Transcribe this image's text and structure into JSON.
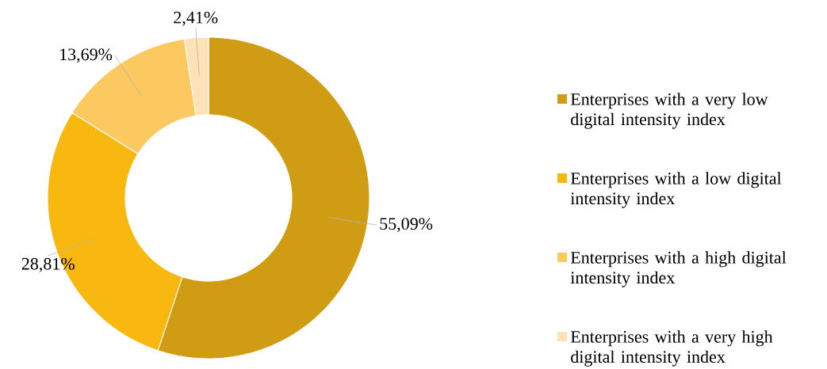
{
  "chart_data": {
    "type": "donut",
    "categories": [
      "Enterprises with a very low digital intensity index",
      "Enterprises with a low digital intensity index",
      "Enterprises with a high digital intensity index",
      "Enterprises with a very high digital intensity index"
    ],
    "values": [
      55.09,
      28.81,
      13.69,
      2.41
    ],
    "colors": [
      "#d09c14",
      "#f8b810",
      "#fcc860",
      "#fde2b8"
    ],
    "value_labels": [
      "55,09%",
      "28,81%",
      "13,69%",
      "2,41%"
    ],
    "legend": "right"
  }
}
